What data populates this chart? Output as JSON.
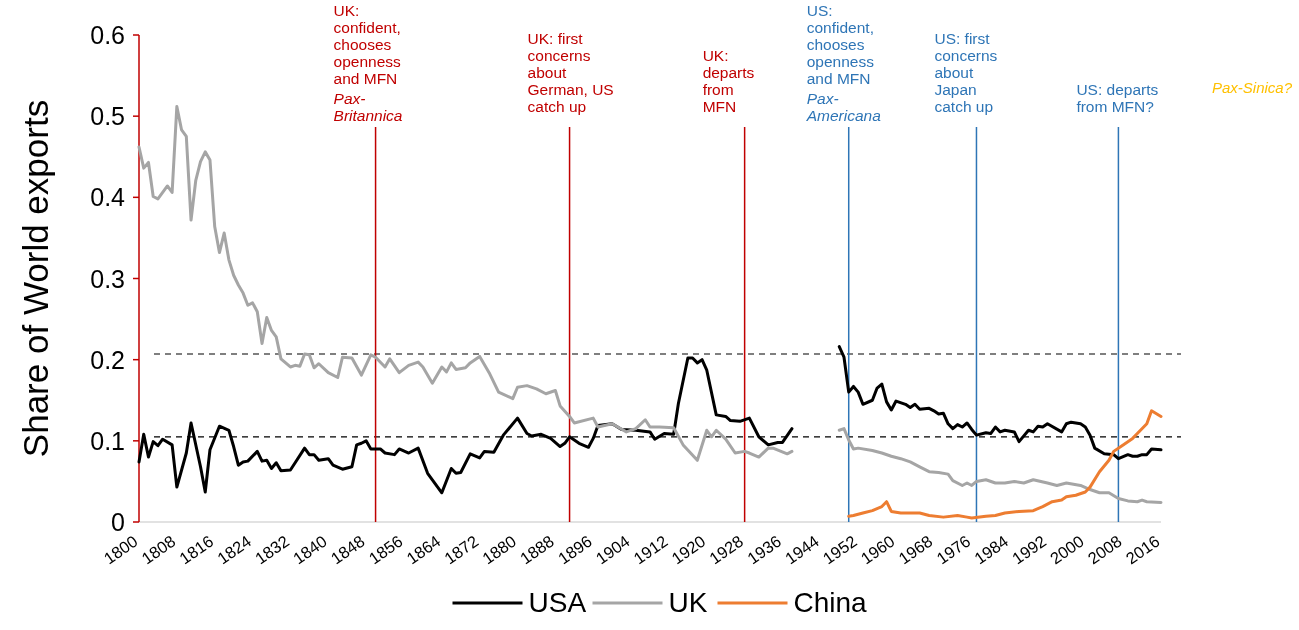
{
  "chart_data": {
    "type": "line",
    "ylabel": "Share of World exports",
    "xlim": [
      1800,
      2016
    ],
    "ylim": [
      0,
      0.6
    ],
    "xticks": [
      1800,
      1808,
      1816,
      1824,
      1832,
      1840,
      1848,
      1856,
      1864,
      1872,
      1880,
      1888,
      1896,
      1904,
      1912,
      1920,
      1928,
      1936,
      1944,
      1952,
      1960,
      1968,
      1976,
      1984,
      1992,
      2000,
      2008,
      2016
    ],
    "yticks": [
      0,
      0.1,
      0.2,
      0.3,
      0.4,
      0.5,
      0.6
    ],
    "grid": false,
    "legend": "bottom",
    "line_style": "solid",
    "marker": "none",
    "series": [
      {
        "name": "USA",
        "color": "#000000",
        "x": [
          1800,
          1801,
          1802,
          1803,
          1804,
          1805,
          1807,
          1808,
          1810,
          1811,
          1813,
          1814,
          1815,
          1817,
          1819,
          1820,
          1821,
          1822,
          1823,
          1825,
          1826,
          1827,
          1828,
          1829,
          1830,
          1832,
          1833,
          1835,
          1836,
          1837,
          1838,
          1840,
          1841,
          1843,
          1845,
          1846,
          1847,
          1848,
          1849,
          1851,
          1852,
          1854,
          1855,
          1857,
          1859,
          1861,
          1862,
          1864,
          1866,
          1867,
          1868,
          1870,
          1872,
          1873,
          1875,
          1877,
          1880,
          1882,
          1883,
          1885,
          1887,
          1889,
          1890,
          1891,
          1893,
          1895,
          1896,
          1897,
          1900,
          1902,
          1905,
          1908,
          1909,
          1911,
          1913,
          1914,
          1916,
          1917,
          1918,
          1919,
          1920,
          1922,
          1924,
          1925,
          1927,
          1929,
          1931,
          1933,
          1935,
          1936,
          1938,
          1943,
          1948,
          1949,
          1950,
          1951,
          1952,
          1953,
          1955,
          1956,
          1957,
          1958,
          1959,
          1960,
          1962,
          1963,
          1964,
          1965,
          1967,
          1968,
          1969,
          1970,
          1971,
          1972,
          1973,
          1974,
          1975,
          1976,
          1977,
          1979,
          1980,
          1981,
          1982,
          1983,
          1985,
          1986,
          1988,
          1989,
          1990,
          1991,
          1992,
          1995,
          1996,
          1997,
          1999,
          2000,
          2001,
          2002,
          2004,
          2006,
          2007,
          2009,
          2010,
          2011,
          2012,
          2013,
          2014,
          2016
        ],
        "values": [
          0.074,
          0.108,
          0.08,
          0.099,
          0.094,
          0.102,
          0.095,
          0.043,
          0.085,
          0.122,
          0.068,
          0.037,
          0.089,
          0.118,
          0.113,
          0.093,
          0.07,
          0.074,
          0.075,
          0.087,
          0.075,
          0.076,
          0.066,
          0.073,
          0.063,
          0.064,
          0.073,
          0.091,
          0.083,
          0.083,
          0.076,
          0.078,
          0.07,
          0.065,
          0.068,
          0.095,
          0.097,
          0.1,
          0.09,
          0.09,
          0.085,
          0.083,
          0.09,
          0.085,
          0.091,
          0.06,
          0.052,
          0.036,
          0.066,
          0.06,
          0.061,
          0.084,
          0.079,
          0.087,
          0.086,
          0.107,
          0.128,
          0.109,
          0.106,
          0.108,
          0.103,
          0.093,
          0.097,
          0.105,
          0.097,
          0.092,
          0.103,
          0.119,
          0.121,
          0.114,
          0.113,
          0.111,
          0.102,
          0.109,
          0.108,
          0.146,
          0.202,
          0.202,
          0.196,
          0.2,
          0.187,
          0.132,
          0.13,
          0.125,
          0.124,
          0.128,
          0.105,
          0.095,
          0.098,
          0.098,
          0.115,
          null,
          0.216,
          0.203,
          0.16,
          0.167,
          0.16,
          0.145,
          0.15,
          0.165,
          0.17,
          0.148,
          0.138,
          0.149,
          0.145,
          0.141,
          0.145,
          0.139,
          0.14,
          0.137,
          0.133,
          0.134,
          0.121,
          0.115,
          0.12,
          0.117,
          0.122,
          0.114,
          0.107,
          0.11,
          0.109,
          0.117,
          0.111,
          0.113,
          0.111,
          0.099,
          0.113,
          0.111,
          0.118,
          0.117,
          0.121,
          0.111,
          0.121,
          0.123,
          0.121,
          0.117,
          0.107,
          0.091,
          0.084,
          0.083,
          0.078,
          0.083,
          0.081,
          0.081,
          0.083,
          0.083,
          0.09,
          0.089
        ]
      },
      {
        "name": "UK",
        "color": "#a5a5a5",
        "x": [
          1800,
          1801,
          1802,
          1803,
          1804,
          1806,
          1807,
          1808,
          1809,
          1810,
          1811,
          1812,
          1813,
          1814,
          1815,
          1816,
          1817,
          1818,
          1819,
          1820,
          1821,
          1822,
          1823,
          1824,
          1825,
          1826,
          1827,
          1828,
          1829,
          1830,
          1832,
          1833,
          1834,
          1835,
          1836,
          1837,
          1838,
          1840,
          1842,
          1843,
          1845,
          1847,
          1849,
          1850,
          1852,
          1853,
          1855,
          1857,
          1859,
          1860,
          1862,
          1864,
          1865,
          1866,
          1867,
          1869,
          1870,
          1872,
          1874,
          1876,
          1879,
          1880,
          1882,
          1884,
          1886,
          1888,
          1889,
          1891,
          1892,
          1896,
          1897,
          1900,
          1903,
          1905,
          1907,
          1908,
          1910,
          1913,
          1915,
          1918,
          1920,
          1921,
          1922,
          1924,
          1926,
          1928,
          1929,
          1931,
          1933,
          1934,
          1937,
          1938,
          1943,
          1948,
          1949,
          1950,
          1951,
          1952,
          1955,
          1957,
          1959,
          1961,
          1963,
          1965,
          1967,
          1969,
          1971,
          1972,
          1974,
          1975,
          1976,
          1977,
          1979,
          1981,
          1983,
          1985,
          1987,
          1989,
          1992,
          1994,
          1996,
          1999,
          2001,
          2003,
          2005,
          2007,
          2009,
          2011,
          2012,
          2013,
          2016
        ],
        "values": [
          0.462,
          0.436,
          0.443,
          0.401,
          0.398,
          0.414,
          0.406,
          0.512,
          0.483,
          0.475,
          0.372,
          0.421,
          0.444,
          0.456,
          0.446,
          0.364,
          0.332,
          0.356,
          0.323,
          0.304,
          0.292,
          0.282,
          0.267,
          0.27,
          0.259,
          0.22,
          0.252,
          0.236,
          0.228,
          0.201,
          0.191,
          0.193,
          0.192,
          0.207,
          0.206,
          0.19,
          0.195,
          0.184,
          0.178,
          0.203,
          0.202,
          0.181,
          0.206,
          0.203,
          0.191,
          0.201,
          0.184,
          0.193,
          0.197,
          0.191,
          0.171,
          0.191,
          0.185,
          0.196,
          0.188,
          0.19,
          0.196,
          0.204,
          0.184,
          0.16,
          0.152,
          0.166,
          0.168,
          0.164,
          0.158,
          0.162,
          0.143,
          0.13,
          0.122,
          0.128,
          0.117,
          0.121,
          0.111,
          0.115,
          0.126,
          0.117,
          0.117,
          0.116,
          0.095,
          0.076,
          0.113,
          0.105,
          0.113,
          0.102,
          0.085,
          0.087,
          0.085,
          0.08,
          0.091,
          0.091,
          0.084,
          0.087,
          null,
          0.113,
          0.115,
          0.101,
          0.09,
          0.091,
          0.088,
          0.085,
          0.081,
          0.078,
          0.074,
          0.068,
          0.062,
          0.061,
          0.059,
          0.051,
          0.045,
          0.048,
          0.045,
          0.05,
          0.052,
          0.048,
          0.048,
          0.05,
          0.048,
          0.052,
          0.048,
          0.045,
          0.048,
          0.045,
          0.04,
          0.036,
          0.036,
          0.029,
          0.026,
          0.025,
          0.027,
          0.025,
          0.024
        ]
      },
      {
        "name": "China",
        "color": "#ed7d31",
        "x": [
          1950,
          1951,
          1953,
          1955,
          1957,
          1958,
          1959,
          1961,
          1963,
          1965,
          1967,
          1970,
          1973,
          1975,
          1976,
          1979,
          1981,
          1983,
          1986,
          1989,
          1991,
          1993,
          1995,
          1996,
          1998,
          2000,
          2001,
          2003,
          2005,
          2006,
          2008,
          2010,
          2011,
          2013,
          2014,
          2016
        ],
        "values": [
          0.007,
          0.008,
          0.011,
          0.014,
          0.019,
          0.025,
          0.013,
          0.011,
          0.011,
          0.011,
          0.008,
          0.006,
          0.008,
          0.006,
          0.005,
          0.007,
          0.008,
          0.011,
          0.013,
          0.014,
          0.019,
          0.025,
          0.027,
          0.031,
          0.033,
          0.037,
          0.043,
          0.062,
          0.076,
          0.087,
          0.095,
          0.103,
          0.109,
          0.121,
          0.137,
          0.13
        ]
      }
    ],
    "ref_lines": [
      {
        "axis": "y",
        "value": 0.207,
        "color": "#000000",
        "line_style": "dashed"
      },
      {
        "axis": "y",
        "value": 0.105,
        "color": "#000000",
        "line_style": "dashed"
      },
      {
        "axis": "x",
        "value": 1850,
        "color": "#c00000",
        "line_style": "solid",
        "label": "UK:\nconfident,\nchooses\nopenness\nand MFN"
      },
      {
        "axis": "x",
        "value": 1891,
        "color": "#c00000",
        "line_style": "solid",
        "label": "UK: first\nconcerns\nabout\nGerman, US\ncatch up"
      },
      {
        "axis": "x",
        "value": 1928,
        "color": "#c00000",
        "line_style": "solid",
        "label": "UK:\ndeparts\nfrom\nMFN"
      },
      {
        "axis": "x",
        "value": 1950,
        "color": "#2e75b6",
        "line_style": "solid",
        "label": "US:\nconfident,\nchooses\nopenness\nand MFN"
      },
      {
        "axis": "x",
        "value": 1977,
        "color": "#2e75b6",
        "line_style": "solid",
        "label": "US: first\nconcerns\nabout\nJapan\ncatch up"
      },
      {
        "axis": "x",
        "value": 2007,
        "color": "#2e75b6",
        "line_style": "solid",
        "label": "US: departs\nfrom MFN?"
      }
    ],
    "annotations": [
      {
        "text": "Pax-\nBritannica",
        "x": 1850,
        "y": 0.48
      },
      {
        "text": "Pax-\nAmericana",
        "x": 1950,
        "y": 0.48
      },
      "Pax-Sinica?"
    ]
  }
}
